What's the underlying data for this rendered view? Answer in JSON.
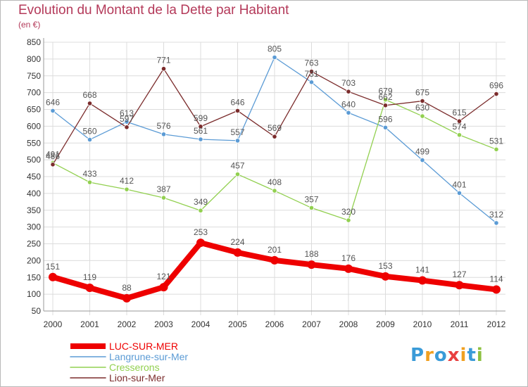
{
  "chart_data": {
    "type": "line",
    "title": "Evolution du Montant de la Dette par Habitant",
    "subtitle": "(en €)",
    "x": [
      "2000",
      "2001",
      "2002",
      "2003",
      "2004",
      "2005",
      "2006",
      "2007",
      "2008",
      "2009",
      "2010",
      "2011",
      "2012"
    ],
    "ylim": [
      50,
      850
    ],
    "yticks": [
      50,
      100,
      150,
      200,
      250,
      300,
      350,
      400,
      450,
      500,
      550,
      600,
      650,
      700,
      750,
      800,
      850
    ],
    "grid": true,
    "legend_position": "bottom-left",
    "series": [
      {
        "name": "LUC-SUR-MER",
        "color": "#ee0000",
        "values": [
          151,
          119,
          88,
          121,
          253,
          224,
          201,
          188,
          176,
          153,
          141,
          127,
          114
        ]
      },
      {
        "name": "Langrune-sur-Mer",
        "color": "#5b9bd5",
        "values": [
          646,
          560,
          613,
          576,
          561,
          557,
          805,
          731,
          640,
          596,
          499,
          401,
          312
        ]
      },
      {
        "name": "Cresserons",
        "color": "#92d050",
        "values": [
          491,
          433,
          412,
          387,
          349,
          457,
          408,
          357,
          320,
          679,
          630,
          574,
          531
        ]
      },
      {
        "name": "Lion-sur-Mer",
        "color": "#7b2c2c",
        "values": [
          486,
          668,
          597,
          771,
          599,
          646,
          569,
          763,
          703,
          662,
          675,
          615,
          696
        ]
      }
    ]
  },
  "logo": {
    "letters": [
      "P",
      "r",
      "o",
      "x",
      "i",
      "t",
      "i"
    ],
    "colors": [
      "#3a9bd8",
      "#f0a020",
      "#3a9bd8",
      "#e84040",
      "#f0a020",
      "#3a9bd8",
      "#8cc040"
    ]
  }
}
